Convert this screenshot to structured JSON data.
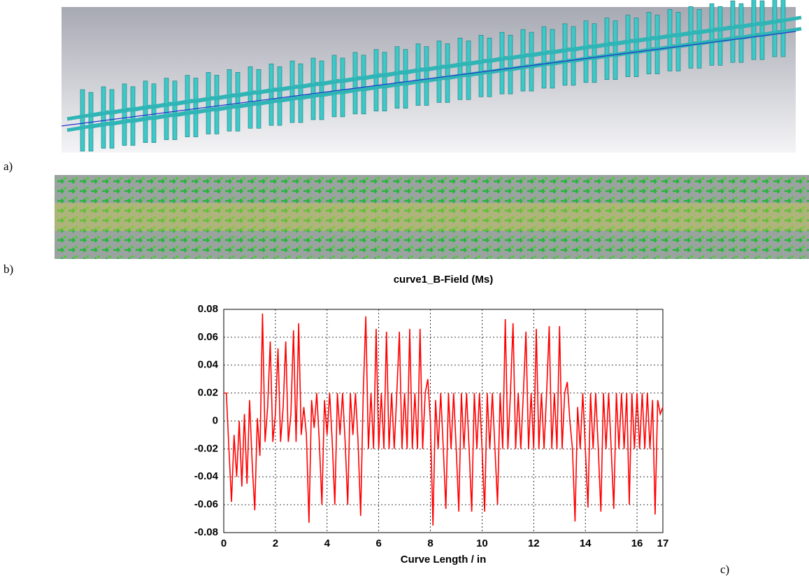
{
  "panel_labels": [
    "a)",
    "b)",
    "c)"
  ],
  "chart_data": {
    "type": "line",
    "title": "curve1_B-Field (Ms)",
    "x_label": "Curve Length / in",
    "color": "#ff0000",
    "grid": true,
    "xlim": [
      0,
      17
    ],
    "ylim": [
      -0.08,
      0.08
    ],
    "xticks": [
      0,
      2,
      4,
      6,
      8,
      10,
      12,
      14,
      16,
      17
    ],
    "yticks": [
      -0.08,
      -0.06,
      -0.04,
      -0.02,
      0,
      0.02,
      0.04,
      0.06,
      0.08
    ],
    "x": [
      0,
      0.1,
      0.2,
      0.3,
      0.4,
      0.5,
      0.6,
      0.7,
      0.8,
      0.9,
      1,
      1.1,
      1.2,
      1.3,
      1.4,
      1.5,
      1.6,
      1.7,
      1.8,
      1.9,
      2,
      2.1,
      2.2,
      2.3,
      2.4,
      2.5,
      2.6,
      2.7,
      2.8,
      2.9,
      3,
      3.1,
      3.2,
      3.3,
      3.4,
      3.5,
      3.6,
      3.7,
      3.8,
      3.9,
      4,
      4.1,
      4.2,
      4.3,
      4.4,
      4.5,
      4.6,
      4.7,
      4.8,
      4.9,
      5,
      5.1,
      5.2,
      5.3,
      5.4,
      5.5,
      5.6,
      5.7,
      5.8,
      5.9,
      6,
      6.1,
      6.2,
      6.3,
      6.4,
      6.5,
      6.6,
      6.7,
      6.8,
      6.9,
      7,
      7.1,
      7.2,
      7.3,
      7.4,
      7.5,
      7.6,
      7.7,
      7.8,
      7.9,
      8,
      8.1,
      8.2,
      8.3,
      8.4,
      8.5,
      8.6,
      8.7,
      8.8,
      8.9,
      9,
      9.1,
      9.2,
      9.3,
      9.4,
      9.5,
      9.6,
      9.7,
      9.8,
      9.9,
      10,
      10.1,
      10.2,
      10.3,
      10.4,
      10.5,
      10.6,
      10.7,
      10.8,
      10.9,
      11,
      11.1,
      11.2,
      11.3,
      11.4,
      11.5,
      11.6,
      11.7,
      11.8,
      11.9,
      12,
      12.1,
      12.2,
      12.3,
      12.4,
      12.5,
      12.6,
      12.7,
      12.8,
      12.9,
      13,
      13.1,
      13.2,
      13.3,
      13.4,
      13.5,
      13.6,
      13.7,
      13.8,
      13.9,
      14,
      14.1,
      14.2,
      14.3,
      14.4,
      14.5,
      14.6,
      14.7,
      14.8,
      14.9,
      15,
      15.1,
      15.2,
      15.3,
      15.4,
      15.5,
      15.6,
      15.7,
      15.8,
      15.9,
      16,
      16.1,
      16.2,
      16.3,
      16.4,
      16.5,
      16.6,
      16.7,
      16.8,
      16.9,
      17
    ],
    "values": [
      0.02,
      0.02,
      -0.02,
      -0.058,
      -0.01,
      -0.04,
      0.0,
      -0.047,
      0.005,
      -0.045,
      0.015,
      -0.03,
      -0.064,
      0.002,
      -0.025,
      0.077,
      -0.015,
      0.01,
      0.057,
      -0.015,
      0.005,
      0.052,
      -0.015,
      0.01,
      0.057,
      -0.015,
      0.005,
      0.065,
      -0.015,
      0.07,
      -0.01,
      0.01,
      -0.01,
      -0.073,
      0.015,
      -0.005,
      0.02,
      -0.015,
      -0.06,
      0.015,
      -0.01,
      0.02,
      -0.015,
      -0.06,
      0.02,
      -0.01,
      0.02,
      -0.015,
      -0.06,
      0.02,
      -0.01,
      0.02,
      -0.015,
      -0.068,
      0.02,
      0.075,
      -0.02,
      0.02,
      -0.02,
      0.066,
      -0.02,
      0.02,
      -0.02,
      0.064,
      -0.02,
      0.02,
      -0.02,
      0.02,
      0.064,
      -0.02,
      0.02,
      -0.02,
      0.066,
      -0.02,
      0.02,
      -0.02,
      0.066,
      -0.02,
      0.02,
      0.03,
      0.0,
      -0.075,
      0.015,
      -0.02,
      0.02,
      -0.02,
      -0.063,
      0.02,
      -0.02,
      0.02,
      -0.02,
      -0.065,
      0.02,
      -0.02,
      0.02,
      -0.02,
      -0.065,
      0.02,
      -0.02,
      0.02,
      -0.02,
      -0.065,
      0.02,
      -0.02,
      0.02,
      -0.02,
      -0.06,
      0.02,
      -0.02,
      0.073,
      -0.02,
      0.02,
      0.07,
      -0.02,
      0.02,
      -0.02,
      0.02,
      0.064,
      -0.02,
      0.02,
      -0.02,
      0.066,
      -0.02,
      0.02,
      -0.02,
      0.02,
      0.068,
      -0.02,
      0.02,
      -0.02,
      0.068,
      -0.02,
      0.02,
      0.028,
      0.0,
      -0.02,
      -0.072,
      0.01,
      -0.02,
      0.02,
      -0.02,
      -0.062,
      0.02,
      -0.02,
      0.02,
      -0.02,
      -0.065,
      0.02,
      -0.02,
      0.02,
      -0.02,
      -0.063,
      0.02,
      -0.02,
      0.02,
      -0.02,
      0.02,
      -0.06,
      0.02,
      -0.02,
      0.02,
      -0.02,
      0.02,
      -0.02,
      0.02,
      -0.02,
      0.015,
      -0.067,
      0.015,
      0.005,
      0.01
    ]
  }
}
